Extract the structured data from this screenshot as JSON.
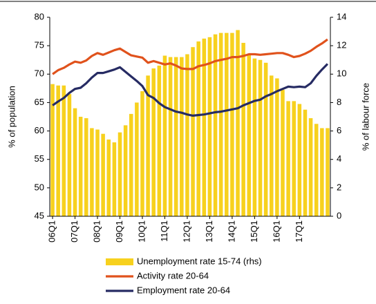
{
  "chart_data": {
    "type": "bar-line",
    "y_label": "% of population",
    "y2_label": "% of labour force",
    "categories": [
      "06Q1",
      null,
      null,
      null,
      "07Q1",
      null,
      null,
      null,
      "08Q1",
      null,
      null,
      null,
      "09Q1",
      null,
      null,
      null,
      "10Q1",
      null,
      null,
      null,
      "11Q1",
      null,
      null,
      null,
      "12Q1",
      null,
      null,
      null,
      "13Q1",
      null,
      null,
      null,
      "14Q1",
      null,
      null,
      null,
      "15Q1",
      null,
      null,
      null,
      "16Q1",
      null,
      null,
      null,
      "17Q1",
      null,
      null,
      null,
      null,
      null
    ],
    "ylim": [
      45,
      80
    ],
    "yticks": [
      45,
      50,
      55,
      60,
      65,
      70,
      75,
      80
    ],
    "y2lim": [
      0,
      14
    ],
    "y2ticks": [
      0,
      2,
      4,
      6,
      8,
      10,
      12,
      14
    ],
    "series": [
      {
        "name": "Unemployment rate 15-74 (rhs)",
        "type": "bar",
        "axis": "y2",
        "color": "#f7d11e",
        "values": [
          9.3,
          9.2,
          9.2,
          8.6,
          7.6,
          7.0,
          6.9,
          6.2,
          6.1,
          5.8,
          5.4,
          5.2,
          5.9,
          6.4,
          7.2,
          8.0,
          8.8,
          9.9,
          10.4,
          10.6,
          11.3,
          11.2,
          11.2,
          11.2,
          11.4,
          11.9,
          12.3,
          12.5,
          12.6,
          12.8,
          12.9,
          12.9,
          12.9,
          13.1,
          12.2,
          11.4,
          11.1,
          11.0,
          10.8,
          9.9,
          9.7,
          8.9,
          8.1,
          8.1,
          7.9,
          7.5,
          6.9,
          6.5,
          6.2,
          6.2
        ]
      },
      {
        "name": "Activity rate 20-64",
        "type": "line",
        "color": "#e0521c",
        "values": [
          70.0,
          70.7,
          71.1,
          71.7,
          72.2,
          72.0,
          72.4,
          73.2,
          73.7,
          73.4,
          73.8,
          74.2,
          74.5,
          73.9,
          73.3,
          73.1,
          72.9,
          72.0,
          72.3,
          72.0,
          71.7,
          71.9,
          71.5,
          71.0,
          70.9,
          70.9,
          71.4,
          71.6,
          71.9,
          72.3,
          72.5,
          72.7,
          73.0,
          73.0,
          73.2,
          73.5,
          73.5,
          73.4,
          73.5,
          73.6,
          73.7,
          73.7,
          73.4,
          73.0,
          73.2,
          73.6,
          74.1,
          74.8,
          75.4,
          76.1
        ]
      },
      {
        "name": "Employment rate 20-64",
        "type": "line",
        "color": "#262b63",
        "values": [
          64.5,
          65.2,
          65.8,
          66.7,
          67.4,
          67.6,
          68.4,
          69.4,
          70.2,
          70.2,
          70.5,
          70.8,
          71.2,
          70.4,
          69.6,
          68.8,
          67.9,
          66.3,
          65.8,
          64.9,
          64.2,
          63.8,
          63.4,
          63.2,
          62.9,
          62.7,
          62.8,
          62.9,
          63.1,
          63.3,
          63.4,
          63.6,
          63.8,
          64.0,
          64.5,
          64.9,
          65.3,
          65.5,
          66.1,
          66.5,
          67.0,
          67.4,
          67.8,
          67.7,
          67.8,
          67.7,
          68.4,
          69.7,
          70.8,
          71.8
        ]
      }
    ]
  }
}
